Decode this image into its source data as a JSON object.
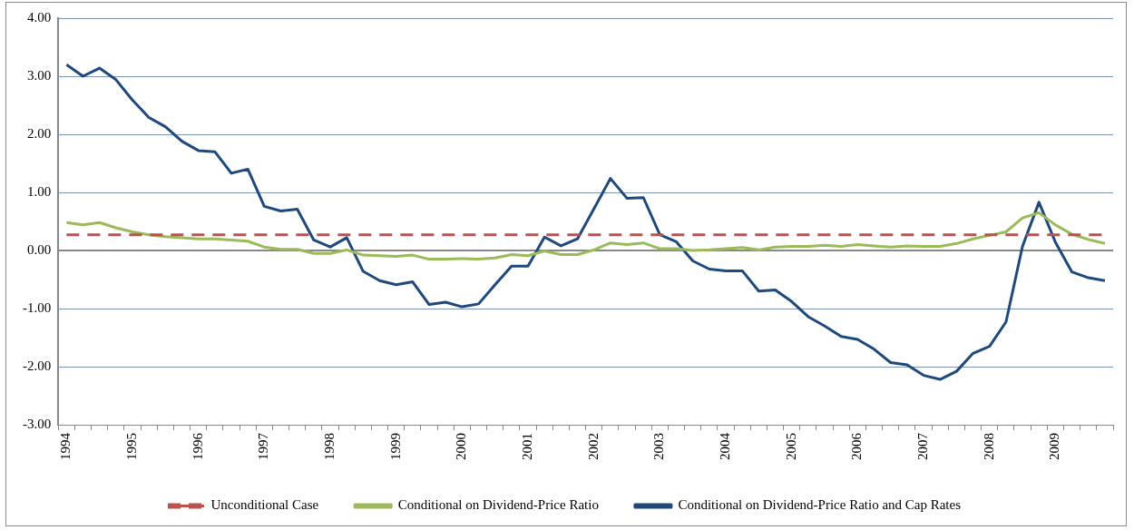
{
  "chart_data": {
    "type": "line",
    "categories": [
      "1994",
      null,
      null,
      null,
      "1995",
      null,
      null,
      null,
      "1996",
      null,
      null,
      null,
      "1997",
      null,
      null,
      null,
      "1998",
      null,
      null,
      null,
      "1999",
      null,
      null,
      null,
      "2000",
      null,
      null,
      null,
      "2001",
      null,
      null,
      null,
      "2002",
      null,
      null,
      null,
      "2003",
      null,
      null,
      null,
      "2004",
      null,
      null,
      null,
      "2005",
      null,
      null,
      null,
      "2006",
      null,
      null,
      null,
      "2007",
      null,
      null,
      null,
      "2008",
      null,
      null,
      null,
      "2009",
      null,
      null,
      null
    ],
    "series": [
      {
        "name": "Unconditional Case",
        "color": "#c0504d",
        "line_style": "dashed",
        "values": [
          0.27,
          0.27,
          0.27,
          0.27,
          0.27,
          0.27,
          0.27,
          0.27,
          0.27,
          0.27,
          0.27,
          0.27,
          0.27,
          0.27,
          0.27,
          0.27,
          0.27,
          0.27,
          0.27,
          0.27,
          0.27,
          0.27,
          0.27,
          0.27,
          0.27,
          0.27,
          0.27,
          0.27,
          0.27,
          0.27,
          0.27,
          0.27,
          0.27,
          0.27,
          0.27,
          0.27,
          0.27,
          0.27,
          0.27,
          0.27,
          0.27,
          0.27,
          0.27,
          0.27,
          0.27,
          0.27,
          0.27,
          0.27,
          0.27,
          0.27,
          0.27,
          0.27,
          0.27,
          0.27,
          0.27,
          0.27,
          0.27,
          0.27,
          0.27,
          0.27,
          0.27,
          0.27,
          0.27,
          0.27
        ]
      },
      {
        "name": "Conditional on Dividend-Price Ratio",
        "color": "#9bbb59",
        "line_style": "solid",
        "values": [
          0.48,
          0.44,
          0.48,
          0.39,
          0.32,
          0.27,
          0.24,
          0.22,
          0.2,
          0.2,
          0.18,
          0.16,
          0.06,
          0.02,
          0.02,
          -0.05,
          -0.05,
          0.01,
          -0.08,
          -0.09,
          -0.1,
          -0.08,
          -0.15,
          -0.15,
          -0.14,
          -0.15,
          -0.13,
          -0.07,
          -0.09,
          -0.01,
          -0.07,
          -0.07,
          0.01,
          0.13,
          0.1,
          0.13,
          0.03,
          0.03,
          0.0,
          0.01,
          0.03,
          0.05,
          0.01,
          0.06,
          0.07,
          0.07,
          0.09,
          0.07,
          0.1,
          0.08,
          0.06,
          0.08,
          0.07,
          0.07,
          0.12,
          0.2,
          0.26,
          0.32,
          0.56,
          0.65,
          0.44,
          0.28,
          0.19,
          0.12
        ]
      },
      {
        "name": "Conditional on Dividend-Price Ratio and Cap Rates",
        "color": "#1f497d",
        "line_style": "solid",
        "values": [
          3.2,
          3.0,
          3.14,
          2.94,
          2.59,
          2.29,
          2.13,
          1.88,
          1.72,
          1.7,
          1.33,
          1.4,
          0.76,
          0.68,
          0.71,
          0.18,
          0.06,
          0.22,
          -0.36,
          -0.52,
          -0.59,
          -0.54,
          -0.93,
          -0.89,
          -0.97,
          -0.92,
          -0.59,
          -0.27,
          -0.27,
          0.23,
          0.08,
          0.2,
          0.72,
          1.24,
          0.9,
          0.91,
          0.27,
          0.15,
          -0.18,
          -0.32,
          -0.35,
          -0.35,
          -0.7,
          -0.68,
          -0.88,
          -1.14,
          -1.3,
          -1.48,
          -1.53,
          -1.7,
          -1.93,
          -1.97,
          -2.15,
          -2.22,
          -2.08,
          -1.77,
          -1.65,
          -1.23,
          0.07,
          0.83,
          0.14,
          -0.37,
          -0.47,
          -0.52
        ]
      }
    ],
    "ylim": [
      -3,
      4
    ],
    "yticks": [
      {
        "value": -3,
        "label": "-3.00"
      },
      {
        "value": -2,
        "label": "-2.00"
      },
      {
        "value": -1,
        "label": "-1.00"
      },
      {
        "value": 0,
        "label": "0.00"
      },
      {
        "value": 1,
        "label": "1.00"
      },
      {
        "value": 2,
        "label": "2.00"
      },
      {
        "value": 3,
        "label": "3.00"
      },
      {
        "value": 4,
        "label": "4.00"
      }
    ],
    "grid": "y",
    "legend": "bottom",
    "marker": "none"
  }
}
